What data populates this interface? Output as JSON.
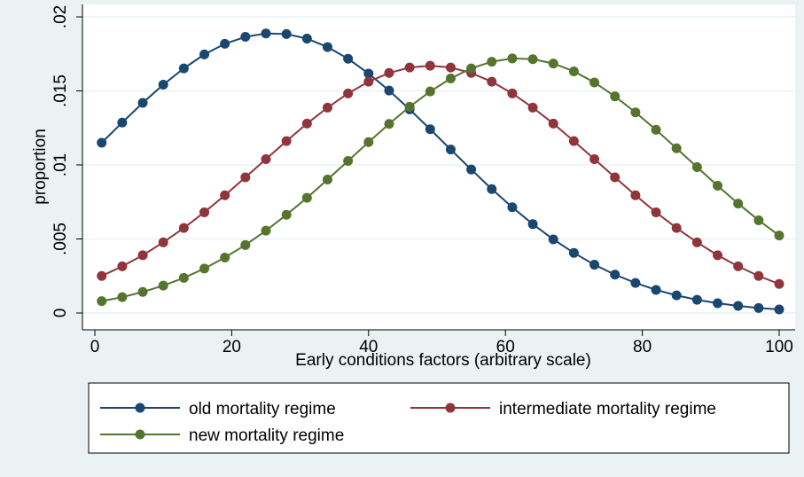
{
  "chart_data": {
    "type": "line",
    "x_label": "Early conditions factors (arbitrary scale)",
    "y_label": "proportion",
    "x": [
      1,
      4,
      7,
      10,
      13,
      16,
      19,
      22,
      25,
      28,
      31,
      34,
      37,
      40,
      43,
      46,
      49,
      52,
      55,
      58,
      61,
      64,
      67,
      70,
      73,
      76,
      79,
      82,
      85,
      88,
      91,
      94,
      97,
      100
    ],
    "series": [
      {
        "name": "old mortality regime",
        "color": "#1a476f",
        "values": [
          0.0115,
          0.01286,
          0.01419,
          0.01542,
          0.01652,
          0.01746,
          0.01818,
          0.01865,
          0.01888,
          0.01884,
          0.01853,
          0.01796,
          0.01717,
          0.01617,
          0.01502,
          0.01375,
          0.01241,
          0.01104,
          0.00969,
          0.00837,
          0.00714,
          0.006,
          0.00497,
          0.00406,
          0.00326,
          0.00259,
          0.00203,
          0.00156,
          0.00119,
          0.00089,
          0.00066,
          0.00048,
          0.00034,
          0.00024
        ]
      },
      {
        "name": "intermediate mortality regime",
        "color": "#90353b",
        "values": [
          0.0025,
          0.00315,
          0.0039,
          0.00477,
          0.00574,
          0.0068,
          0.00795,
          0.00916,
          0.01039,
          0.01161,
          0.01279,
          0.01387,
          0.01483,
          0.01562,
          0.01621,
          0.01658,
          0.0167,
          0.01658,
          0.01621,
          0.01562,
          0.01483,
          0.01387,
          0.01279,
          0.01161,
          0.01039,
          0.00916,
          0.00795,
          0.0068,
          0.00574,
          0.00477,
          0.0039,
          0.00315,
          0.0025,
          0.00196
        ]
      },
      {
        "name": "new mortality regime",
        "color": "#55752f",
        "values": [
          0.0008,
          0.00107,
          0.00142,
          0.00185,
          0.00237,
          0.003,
          0.00374,
          0.00459,
          0.00556,
          0.00663,
          0.00778,
          0.00901,
          0.01027,
          0.01154,
          0.01277,
          0.01393,
          0.01496,
          0.01584,
          0.01652,
          0.01697,
          0.01719,
          0.01714,
          0.01685,
          0.01632,
          0.01557,
          0.01463,
          0.01355,
          0.01237,
          0.01112,
          0.00985,
          0.00859,
          0.00739,
          0.00626,
          0.00523
        ]
      }
    ],
    "xlim": [
      0,
      100
    ],
    "xticks": [
      0,
      20,
      40,
      60,
      80,
      100
    ],
    "ylim": [
      0,
      0.02
    ],
    "yticks": [
      {
        "value": 0,
        "label": "0"
      },
      {
        "value": 0.005,
        "label": ".005"
      },
      {
        "value": 0.01,
        "label": ".01"
      },
      {
        "value": 0.015,
        "label": ".015"
      },
      {
        "value": 0.02,
        "label": ".02"
      }
    ],
    "grid": true,
    "markers": true
  }
}
